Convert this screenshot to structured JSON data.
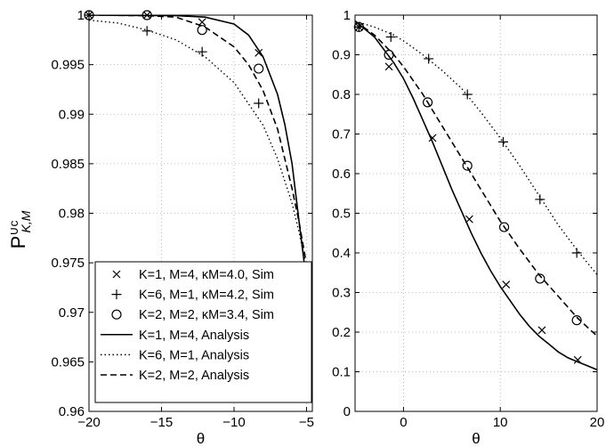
{
  "figure": {
    "ylabel_main": "P",
    "ylabel_sup": "∪c",
    "ylabel_sub": "K,M"
  },
  "chart_data": [
    {
      "type": "line",
      "xlabel": "θ",
      "xlim": [
        -20,
        -4.6
      ],
      "ylim": [
        0.96,
        1.0
      ],
      "grid": true,
      "xticks": [
        -20,
        -15,
        -10,
        -5
      ],
      "xtick_labels": [
        "−20",
        "−15",
        "−10",
        "−5"
      ],
      "yticks": [
        0.96,
        0.965,
        0.97,
        0.975,
        0.98,
        0.985,
        0.99,
        0.995,
        1.0
      ],
      "ytick_labels": [
        "0.96",
        "0.965",
        "0.97",
        "0.975",
        "0.98",
        "0.985",
        "0.99",
        "0.995",
        "1"
      ],
      "legend_position": "bottom-left",
      "legend": [
        {
          "label": "K=1, M=4, κM=4.0, Sim",
          "marker": "x",
          "line": "none"
        },
        {
          "label": "K=6, M=1, κM=4.2, Sim",
          "marker": "plus",
          "line": "none"
        },
        {
          "label": "K=2, M=2, κM=3.4, Sim",
          "marker": "circle",
          "line": "none"
        },
        {
          "label": "K=1, M=4, Analysis",
          "marker": "none",
          "line": "solid"
        },
        {
          "label": "K=6, M=1, Analysis",
          "marker": "none",
          "line": "dotted"
        },
        {
          "label": "K=2, M=2, Analysis",
          "marker": "none",
          "line": "dashed"
        }
      ],
      "series": [
        {
          "marker": "x",
          "x": [
            -20,
            -16,
            -12.2,
            -8.3
          ],
          "y": [
            1.0,
            1.0,
            0.9993,
            0.9962
          ]
        },
        {
          "marker": "plus",
          "x": [
            -20,
            -16,
            -12.2,
            -8.3
          ],
          "y": [
            1.0,
            0.9984,
            0.9963,
            0.9911
          ]
        },
        {
          "marker": "circle",
          "x": [
            -20,
            -16,
            -12.2,
            -8.3
          ],
          "y": [
            1.0,
            1.0,
            0.9985,
            0.9946
          ]
        },
        {
          "line": "solid",
          "x": [
            -20,
            -14,
            -12,
            -10,
            -9,
            -8,
            -7,
            -6.5,
            -6,
            -5.5,
            -5.2,
            -5.0,
            -4.85
          ],
          "y": [
            1.0,
            0.99995,
            0.9998,
            0.9991,
            0.998,
            0.9958,
            0.992,
            0.989,
            0.985,
            0.979,
            0.9755,
            0.9727,
            0.9708
          ]
        },
        {
          "line": "dotted",
          "x": [
            -20,
            -18,
            -16,
            -14,
            -12,
            -10,
            -8,
            -7,
            -6,
            -5.5,
            -5.0,
            -4.8
          ],
          "y": [
            0.9995,
            0.9992,
            0.9985,
            0.9975,
            0.9958,
            0.9932,
            0.9889,
            0.9855,
            0.981,
            0.978,
            0.9745,
            0.973
          ]
        },
        {
          "line": "dashed",
          "x": [
            -20,
            -16,
            -14,
            -12,
            -10,
            -9,
            -8,
            -7,
            -6,
            -5.5,
            -5.0,
            -4.8
          ],
          "y": [
            1.0,
            0.99995,
            0.9998,
            0.9988,
            0.9968,
            0.995,
            0.9924,
            0.9885,
            0.9825,
            0.979,
            0.9748,
            0.973
          ]
        }
      ]
    },
    {
      "type": "line",
      "xlabel": "θ",
      "xlim": [
        -5,
        20
      ],
      "ylim": [
        0,
        1.0
      ],
      "grid": true,
      "xticks": [
        0,
        10,
        20
      ],
      "xtick_labels": [
        "0",
        "10",
        "20"
      ],
      "yticks": [
        0,
        0.1,
        0.2,
        0.3,
        0.4,
        0.5,
        0.6,
        0.7,
        0.8,
        0.9,
        1.0
      ],
      "ytick_labels": [
        "0",
        "0.1",
        "0.2",
        "0.3",
        "0.4",
        "0.5",
        "0.6",
        "0.7",
        "0.8",
        "0.9",
        "1"
      ],
      "series": [
        {
          "marker": "x",
          "x": [
            -4.6,
            -1.5,
            3,
            6.8,
            10.6,
            14.3,
            18
          ],
          "y": [
            0.97,
            0.87,
            0.69,
            0.485,
            0.32,
            0.205,
            0.13
          ]
        },
        {
          "marker": "plus",
          "x": [
            -4.6,
            -1.3,
            2.6,
            6.6,
            10.3,
            14.1,
            17.9
          ],
          "y": [
            0.97,
            0.945,
            0.89,
            0.8,
            0.68,
            0.535,
            0.4
          ]
        },
        {
          "marker": "circle",
          "x": [
            -4.6,
            -1.5,
            2.5,
            6.6,
            10.4,
            14.1,
            17.9
          ],
          "y": [
            0.97,
            0.9,
            0.78,
            0.62,
            0.465,
            0.335,
            0.23
          ]
        },
        {
          "line": "solid",
          "x": [
            -5,
            -3,
            -1,
            0,
            1,
            2,
            3,
            4,
            5,
            6,
            7,
            8,
            9,
            10,
            11,
            12,
            13,
            14,
            15,
            16,
            17,
            18,
            19,
            20
          ],
          "y": [
            0.985,
            0.945,
            0.88,
            0.84,
            0.79,
            0.735,
            0.68,
            0.62,
            0.56,
            0.505,
            0.45,
            0.4,
            0.355,
            0.315,
            0.28,
            0.245,
            0.215,
            0.19,
            0.17,
            0.15,
            0.135,
            0.125,
            0.115,
            0.105
          ]
        },
        {
          "line": "dotted",
          "x": [
            -5,
            -3,
            -1,
            0,
            2,
            4,
            6,
            8,
            10,
            12,
            14,
            16,
            18,
            20
          ],
          "y": [
            0.985,
            0.97,
            0.95,
            0.935,
            0.9,
            0.86,
            0.815,
            0.755,
            0.69,
            0.62,
            0.545,
            0.47,
            0.405,
            0.345
          ]
        },
        {
          "line": "dashed",
          "x": [
            -5,
            -3,
            -1,
            0,
            2,
            4,
            6,
            8,
            10,
            12,
            14,
            16,
            18,
            20
          ],
          "y": [
            0.985,
            0.95,
            0.9,
            0.87,
            0.8,
            0.72,
            0.64,
            0.56,
            0.48,
            0.41,
            0.345,
            0.29,
            0.235,
            0.19
          ]
        }
      ]
    }
  ]
}
